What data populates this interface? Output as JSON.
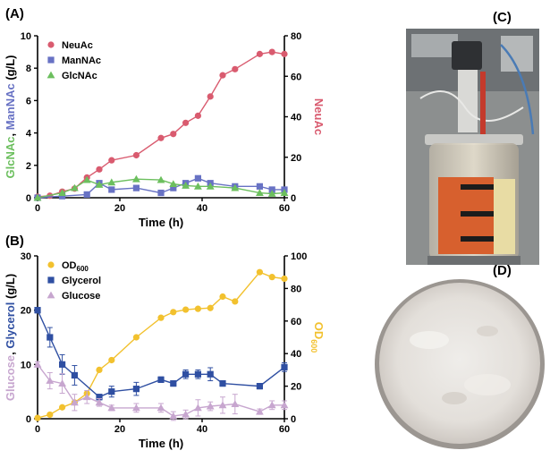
{
  "panels": {
    "A": "(A)",
    "B": "(B)",
    "C": "(C)",
    "D": "(D)"
  },
  "colors": {
    "neuac": "#d95b6f",
    "mannac": "#6872c4",
    "glcnac": "#6cbf5e",
    "od600": "#f2c12e",
    "glycerol": "#2f4fa2",
    "glucose": "#c7a6cf"
  },
  "photos": {
    "C": "bioreactor-photo",
    "D": "powder-in-dish-photo"
  },
  "chart_data": [
    {
      "id": "A",
      "type": "line",
      "xlabel": "Time (h)",
      "xlim": [
        0,
        60
      ],
      "xticks": [
        0,
        20,
        40,
        60
      ],
      "xtick_labels": [
        "0",
        "20",
        "40",
        "60"
      ],
      "ylabel_left_parts": [
        "GlcNAc",
        ", ",
        "ManNAc",
        " (g/L)"
      ],
      "ylim_left": [
        0,
        10
      ],
      "yticks_left": [
        0,
        2,
        4,
        6,
        8,
        10
      ],
      "ytick_labels_left": [
        "0",
        "2",
        "4",
        "6",
        "8",
        "10"
      ],
      "ylabel_right": "NeuAc",
      "ylim_right": [
        0,
        80
      ],
      "yticks_right": [
        0,
        20,
        40,
        60,
        80
      ],
      "ytick_labels_right": [
        "0",
        "20",
        "40",
        "60",
        "80"
      ],
      "legend": "top-left",
      "series": [
        {
          "name": "NeuAc",
          "axis": "right",
          "marker": "circle",
          "color": "#d95b6f",
          "x": [
            0,
            3,
            6,
            9,
            12,
            15,
            18,
            24,
            30,
            33,
            36,
            39,
            42,
            45,
            48,
            54,
            57,
            60
          ],
          "y": [
            0.5,
            1,
            3,
            4.5,
            10,
            14,
            18.5,
            21,
            29.5,
            31.5,
            37,
            40.5,
            50,
            60.5,
            63.5,
            71,
            72,
            71
          ]
        },
        {
          "name": "ManNAc",
          "axis": "left",
          "marker": "square",
          "color": "#6872c4",
          "x": [
            0,
            6,
            12,
            15,
            18,
            24,
            30,
            33,
            36,
            39,
            42,
            48,
            54,
            57,
            60
          ],
          "y": [
            0,
            0.1,
            0.2,
            0.9,
            0.5,
            0.6,
            0.3,
            0.6,
            0.9,
            1.2,
            0.9,
            0.7,
            0.7,
            0.5,
            0.5
          ]
        },
        {
          "name": "GlcNAc",
          "axis": "left",
          "marker": "triangle",
          "color": "#6cbf5e",
          "x": [
            0,
            6,
            9,
            12,
            15,
            18,
            24,
            30,
            33,
            36,
            39,
            42,
            48,
            54,
            57,
            60
          ],
          "y": [
            0,
            0.3,
            0.6,
            1.1,
            0.8,
            0.95,
            1.15,
            1.1,
            0.85,
            0.75,
            0.7,
            0.7,
            0.6,
            0.3,
            0.25,
            0.3
          ]
        }
      ]
    },
    {
      "id": "B",
      "type": "line",
      "xlabel": "Time (h)",
      "xlim": [
        0,
        60
      ],
      "xticks": [
        0,
        20,
        40,
        60
      ],
      "xtick_labels": [
        "0",
        "20",
        "40",
        "60"
      ],
      "ylabel_left_parts": [
        "Glucose",
        ", ",
        "Glycerol",
        " (g/L)"
      ],
      "ylim_left": [
        0,
        30
      ],
      "yticks_left": [
        0,
        10,
        20,
        30
      ],
      "ytick_labels_left": [
        "0",
        "10",
        "20",
        "30"
      ],
      "ylabel_right": "OD600",
      "ylabel_right_main": "OD",
      "ylabel_right_sub": "600",
      "ylim_right": [
        0,
        100
      ],
      "yticks_right": [
        0,
        20,
        40,
        60,
        80,
        100
      ],
      "ytick_labels_right": [
        "0",
        "20",
        "40",
        "60",
        "80",
        "100"
      ],
      "legend": "top-left",
      "series": [
        {
          "name": "OD600",
          "legend_main": "OD",
          "legend_sub": "600",
          "axis": "right",
          "marker": "circle",
          "color": "#f2c12e",
          "x": [
            0,
            3,
            6,
            9,
            12,
            15,
            18,
            24,
            30,
            33,
            36,
            39,
            42,
            45,
            48,
            54,
            57,
            60
          ],
          "y": [
            0.5,
            2.5,
            7,
            10,
            15.5,
            30,
            36,
            50,
            62,
            65.5,
            67,
            67.5,
            68,
            75,
            72,
            90,
            87,
            86
          ]
        },
        {
          "name": "Glycerol",
          "axis": "left",
          "marker": "square",
          "color": "#2f4fa2",
          "x": [
            0,
            3,
            6,
            9,
            15,
            18,
            24,
            30,
            33,
            36,
            39,
            42,
            45,
            54,
            60
          ],
          "y": [
            20,
            15,
            10,
            8,
            4,
            5,
            5.5,
            7.2,
            6.5,
            8.2,
            8.2,
            8.2,
            6.5,
            6,
            9.5
          ],
          "err": [
            0.5,
            1.8,
            1.8,
            1.8,
            0.5,
            1,
            1.2,
            0.5,
            0.5,
            0.8,
            0.8,
            1.2,
            0.5,
            0.5,
            0.8
          ]
        },
        {
          "name": "Glucose",
          "axis": "left",
          "marker": "triangle",
          "color": "#c7a6cf",
          "x": [
            0,
            3,
            6,
            9,
            12,
            15,
            18,
            24,
            30,
            33,
            36,
            39,
            42,
            45,
            48,
            54,
            57,
            60
          ],
          "y": [
            10,
            7,
            6.5,
            3,
            4,
            3,
            2,
            2,
            2,
            0.5,
            0.8,
            2,
            2.3,
            2.5,
            2.7,
            1.3,
            2.5,
            2.5
          ],
          "err": [
            0.5,
            1.5,
            1.8,
            1.5,
            1.2,
            0.7,
            0.5,
            0.8,
            0.8,
            0.8,
            0.8,
            1.5,
            0.8,
            1.5,
            1.8,
            0.5,
            0.8,
            0.8
          ]
        }
      ]
    }
  ]
}
